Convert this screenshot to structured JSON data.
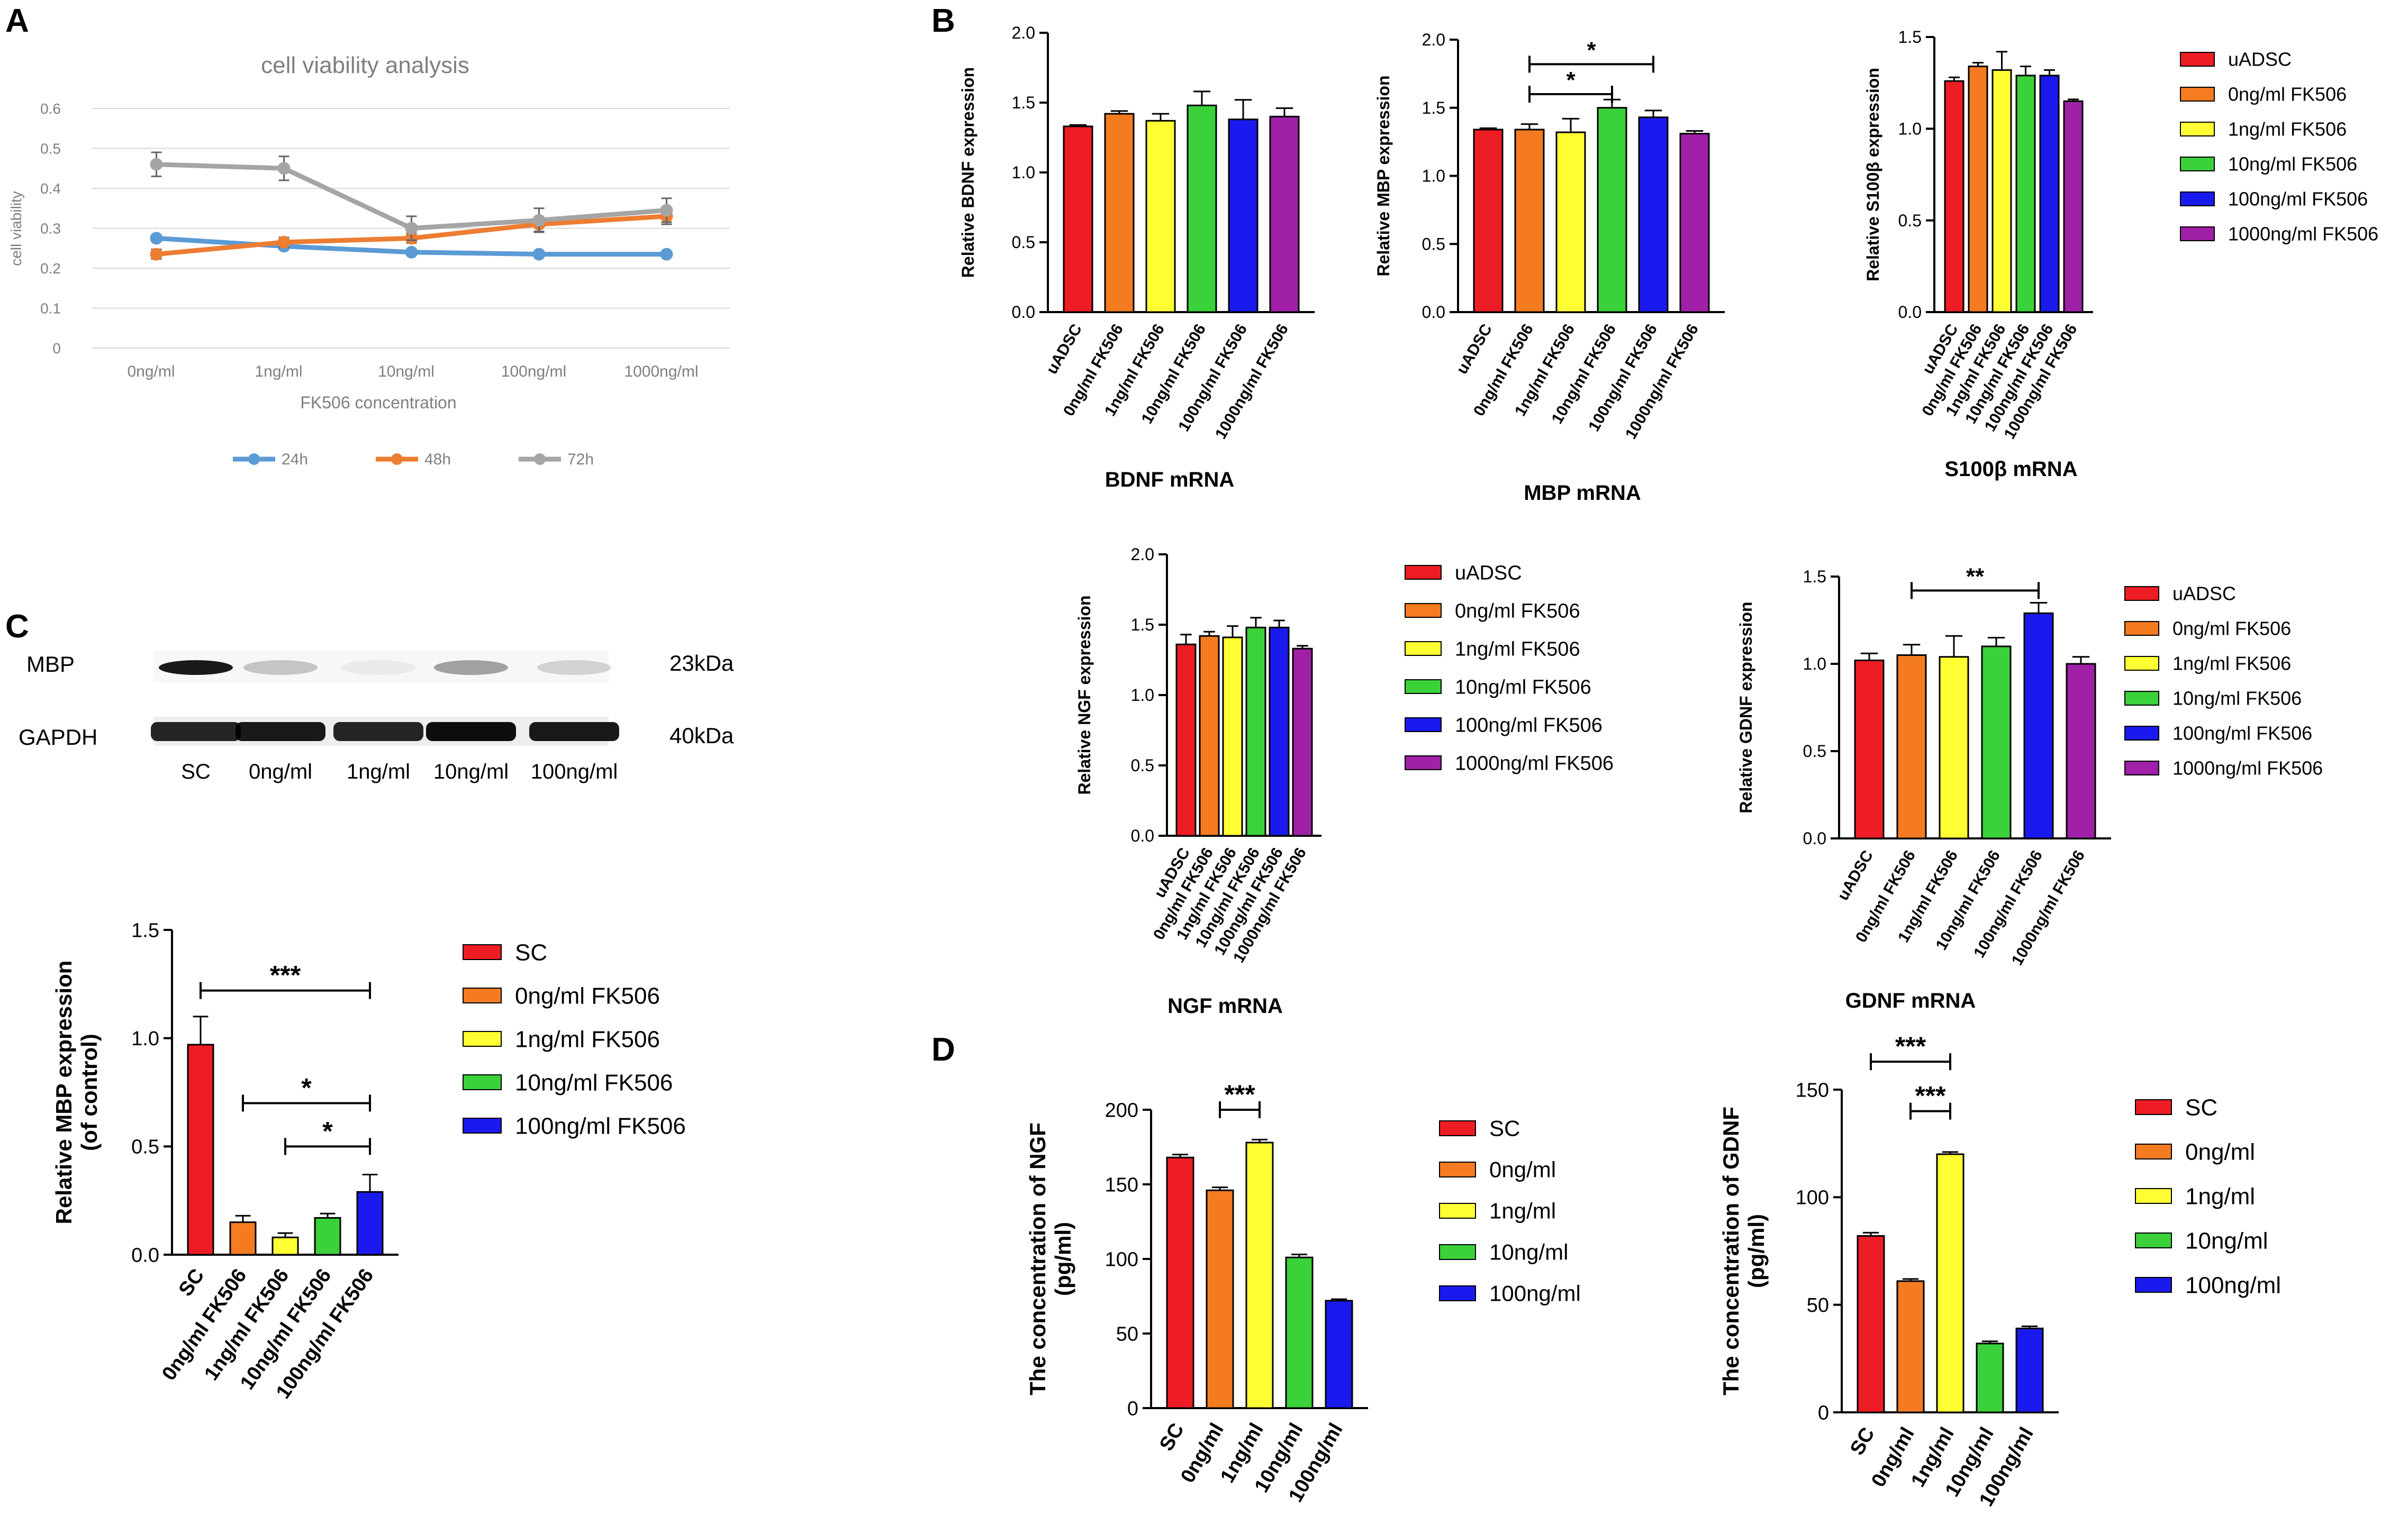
{
  "colors": {
    "red": "#ee1c24",
    "orange": "#f47b20",
    "yellow": "#ffff33",
    "green": "#3ad13a",
    "blue": "#1a1aee",
    "purple": "#a020a8",
    "line24": "#5b9bd5",
    "line48": "#ed7d31",
    "line72": "#a5a5a5",
    "axis": "#000000",
    "grid": "#d9d9d9",
    "faint": "#7f7f7f"
  },
  "panel_letters": {
    "a": "A",
    "b": "B",
    "c": "C",
    "d": "D"
  },
  "western_blot": {
    "labels": {
      "mbp": "MBP",
      "gapdh": "GAPDH",
      "mbp_kda": "23kDa",
      "gapdh_kda": "40kDa"
    },
    "lanes": [
      "SC",
      "0ng/ml",
      "1ng/ml",
      "10ng/ml",
      "100ng/ml"
    ],
    "mbp_intensity": [
      0.9,
      0.2,
      0.05,
      0.35,
      0.15
    ],
    "gapdh_intensity": [
      0.85,
      0.9,
      0.85,
      0.95,
      0.9
    ]
  },
  "chart_data": [
    {
      "id": "A",
      "type": "line",
      "title": "cell viability analysis",
      "xlabel": "FK506 concentration",
      "ylabel": "cell viability",
      "categories": [
        "0ng/ml",
        "1ng/ml",
        "10ng/ml",
        "100ng/ml",
        "1000ng/ml"
      ],
      "ylim": [
        0,
        0.6
      ],
      "yticks": [
        "0",
        "0.1",
        "0.2",
        "0.3",
        "0.4",
        "0.5",
        "0.6"
      ],
      "series": [
        {
          "name": "24h",
          "values": [
            0.275,
            0.255,
            0.24,
            0.235,
            0.235
          ],
          "errors": [
            0.008,
            0.008,
            0.006,
            0.006,
            0.006
          ]
        },
        {
          "name": "48h",
          "values": [
            0.235,
            0.265,
            0.275,
            0.31,
            0.33
          ],
          "errors": [
            0.012,
            0.012,
            0.012,
            0.018,
            0.02
          ]
        },
        {
          "name": "72h",
          "values": [
            0.46,
            0.45,
            0.3,
            0.32,
            0.345
          ],
          "errors": [
            0.03,
            0.03,
            0.03,
            0.03,
            0.03
          ]
        }
      ]
    },
    {
      "id": "B1",
      "type": "bar",
      "title": "BDNF mRNA",
      "ylabel": "Relative BDNF expression",
      "categories": [
        "uADSC",
        "0ng/ml FK506",
        "1ng/ml FK506",
        "10ng/ml FK506",
        "100ng/ml FK506",
        "1000ng/ml FK506"
      ],
      "values": [
        1.33,
        1.42,
        1.37,
        1.48,
        1.38,
        1.4
      ],
      "errors": [
        0.01,
        0.02,
        0.05,
        0.1,
        0.14,
        0.06
      ],
      "ylim": [
        0,
        2.0
      ],
      "yticks": [
        "0.0",
        "0.5",
        "1.0",
        "1.5",
        "2.0"
      ],
      "significance": []
    },
    {
      "id": "B2",
      "type": "bar",
      "title": "MBP mRNA",
      "ylabel": "Relative MBP expression",
      "categories": [
        "uADSC",
        "0ng/ml FK506",
        "1ng/ml FK506",
        "10ng/ml FK506",
        "100ng/ml FK506",
        "1000ng/ml FK506"
      ],
      "values": [
        1.34,
        1.34,
        1.32,
        1.5,
        1.43,
        1.31
      ],
      "errors": [
        0.01,
        0.04,
        0.1,
        0.06,
        0.05,
        0.02
      ],
      "ylim": [
        0,
        2.0
      ],
      "yticks": [
        "0.0",
        "0.5",
        "1.0",
        "1.5",
        "2.0"
      ],
      "significance": [
        {
          "from": 1,
          "to": 3,
          "level": 1.6,
          "label": "*"
        },
        {
          "from": 1,
          "to": 4,
          "level": 1.82,
          "label": "*"
        }
      ]
    },
    {
      "id": "B3",
      "type": "bar",
      "title": "S100β mRNA",
      "ylabel": "Relative S100β expression",
      "categories": [
        "uADSC",
        "0ng/ml FK506",
        "1ng/ml FK506",
        "10ng/ml FK506",
        "100ng/ml FK506",
        "1000ng/ml FK506"
      ],
      "values": [
        1.26,
        1.34,
        1.32,
        1.29,
        1.29,
        1.15
      ],
      "errors": [
        0.02,
        0.02,
        0.1,
        0.05,
        0.03,
        0.01
      ],
      "ylim": [
        0,
        1.5
      ],
      "yticks": [
        "0.0",
        "0.5",
        "1.0",
        "1.5"
      ],
      "significance": []
    },
    {
      "id": "B4",
      "type": "bar",
      "title": "NGF mRNA",
      "ylabel": "Relative NGF expression",
      "categories": [
        "uADSC",
        "0ng/ml FK506",
        "1ng/ml FK506",
        "10ng/ml FK506",
        "100ng/ml FK506",
        "1000ng/ml FK506"
      ],
      "values": [
        1.36,
        1.42,
        1.41,
        1.48,
        1.48,
        1.33
      ],
      "errors": [
        0.07,
        0.03,
        0.08,
        0.07,
        0.05,
        0.02
      ],
      "ylim": [
        0,
        2.0
      ],
      "yticks": [
        "0.0",
        "0.5",
        "1.0",
        "1.5",
        "2.0"
      ],
      "significance": []
    },
    {
      "id": "B5",
      "type": "bar",
      "title": "GDNF mRNA",
      "ylabel": "Relative GDNF expression",
      "categories": [
        "uADSC",
        "0ng/ml FK506",
        "1ng/ml FK506",
        "10ng/ml FK506",
        "100ng/ml FK506",
        "1000ng/ml FK506"
      ],
      "values": [
        1.02,
        1.05,
        1.04,
        1.1,
        1.29,
        1.0
      ],
      "errors": [
        0.04,
        0.06,
        0.12,
        0.05,
        0.06,
        0.04
      ],
      "ylim": [
        0,
        1.5
      ],
      "yticks": [
        "0.0",
        "0.5",
        "1.0",
        "1.5"
      ],
      "significance": [
        {
          "from": 1,
          "to": 4,
          "level": 1.42,
          "label": "**"
        }
      ]
    },
    {
      "id": "C",
      "type": "bar",
      "title": "",
      "ylabel": "Relative MBP expression (of control)",
      "categories": [
        "SC",
        "0ng/ml FK506",
        "1ng/ml FK506",
        "10ng/ml FK506",
        "100ng/ml FK506"
      ],
      "values": [
        0.97,
        0.15,
        0.08,
        0.17,
        0.29
      ],
      "errors": [
        0.13,
        0.03,
        0.02,
        0.02,
        0.08
      ],
      "ylim": [
        0,
        1.5
      ],
      "yticks": [
        "0.0",
        "0.5",
        "1.0",
        "1.5"
      ],
      "significance": [
        {
          "from": 0,
          "to": 4,
          "level": 1.22,
          "label": "***"
        },
        {
          "from": 1,
          "to": 4,
          "level": 0.7,
          "label": "*"
        },
        {
          "from": 2,
          "to": 4,
          "level": 0.5,
          "label": "*"
        }
      ]
    },
    {
      "id": "D1",
      "type": "bar",
      "title": "",
      "ylabel": "The concentration of NGF (pg/ml)",
      "categories": [
        "SC",
        "0ng/ml",
        "1ng/ml",
        "10ng/ml",
        "100ng/ml"
      ],
      "values": [
        168,
        146,
        178,
        101,
        72
      ],
      "errors": [
        2,
        2,
        2,
        2,
        1
      ],
      "ylim": [
        0,
        200
      ],
      "yticks": [
        "0",
        "50",
        "100",
        "150",
        "200"
      ],
      "significance": [
        {
          "from": 1,
          "to": 2,
          "level": 200,
          "label": "***"
        }
      ]
    },
    {
      "id": "D2",
      "type": "bar",
      "title": "",
      "ylabel": "The concentration of GDNF (pg/ml)",
      "categories": [
        "SC",
        "0ng/ml",
        "1ng/ml",
        "10ng/ml",
        "100ng/ml"
      ],
      "values": [
        82,
        61,
        120,
        32,
        39
      ],
      "errors": [
        1.5,
        1,
        1,
        1,
        1
      ],
      "ylim": [
        0,
        150
      ],
      "yticks": [
        "0",
        "50",
        "100",
        "150"
      ],
      "significance": [
        {
          "from": 0,
          "to": 2,
          "level": 163,
          "label": "***"
        },
        {
          "from": 1,
          "to": 2,
          "level": 140,
          "label": "***"
        }
      ]
    }
  ]
}
